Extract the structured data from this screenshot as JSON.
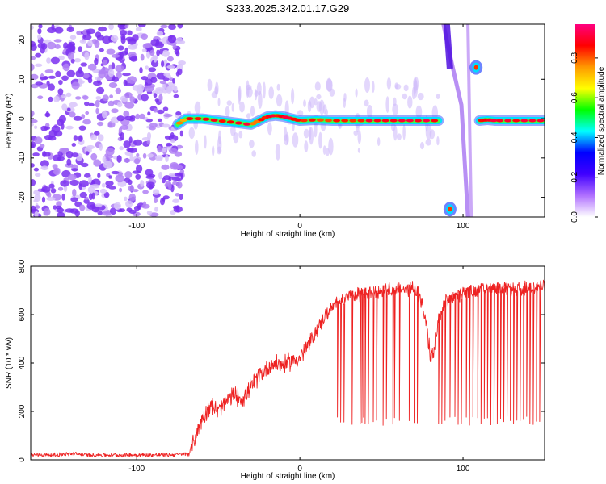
{
  "title": "S233.2025.342.01.17.G29",
  "chart_data": [
    {
      "type": "heatmap",
      "xlabel": "Height of straight line (km)",
      "ylabel": "Frequency (Hz)",
      "xlim": [
        -165,
        150
      ],
      "ylim": [
        -25,
        24
      ],
      "xticks": [
        "-100",
        "0",
        "100"
      ],
      "yticks": [
        "-20",
        "-10",
        "0",
        "10",
        "20"
      ],
      "colorbar": {
        "label": "Normalized spectral amplitude",
        "ticks": [
          "0.0",
          "0.2",
          "0.4",
          "0.6",
          "0.8"
        ],
        "range": [
          0,
          0.97
        ],
        "colors": [
          "#ffffff",
          "#b070ff",
          "#4000ff",
          "#0000ff",
          "#00ffff",
          "#00ff00",
          "#ffff00",
          "#ff9900",
          "#ff0000",
          "#ff0080"
        ]
      },
      "noise_region_x": [
        -165,
        -72
      ],
      "main_trace": {
        "x": [
          -75,
          -70,
          -60,
          -50,
          -40,
          -30,
          -25,
          -20,
          -15,
          -10,
          -5,
          0,
          10,
          20,
          40,
          60,
          75,
          85
        ],
        "freq": [
          -1.5,
          0,
          0,
          -0.5,
          -1,
          -1.5,
          -0.5,
          0.5,
          0.8,
          0.5,
          0,
          -0.5,
          -0.3,
          -0.5,
          -0.5,
          -0.5,
          -0.5,
          -0.5
        ],
        "amp": [
          0.8,
          0.9,
          0.95,
          0.9,
          0.95,
          0.85,
          0.9,
          0.95,
          0.9,
          0.95,
          0.9,
          0.9,
          0.85,
          0.9,
          0.95,
          0.95,
          0.95,
          0.9
        ]
      },
      "side_trace": {
        "x": [
          110,
          115,
          120,
          130,
          140,
          150
        ],
        "freq": [
          -0.5,
          -0.3,
          -0.5,
          -0.5,
          -0.5,
          -0.5
        ],
        "amp": [
          0.9,
          0.95,
          0.95,
          0.95,
          0.95,
          0.9
        ]
      },
      "blobs": [
        {
          "x": 108,
          "freq": 13,
          "amp": 0.85
        },
        {
          "x": 92,
          "freq": -23,
          "amp": 0.85
        }
      ]
    },
    {
      "type": "line",
      "xlabel": "Height of straight line (km)",
      "ylabel": "SNR (10 * v/v)",
      "xlim": [
        -165,
        150
      ],
      "ylim": [
        0,
        800
      ],
      "xticks": [
        "-100",
        "0",
        "100"
      ],
      "yticks": [
        "0",
        "200",
        "400",
        "600",
        "800"
      ],
      "series": [
        {
          "color": "#ee2222",
          "x": [
            -165,
            -150,
            -140,
            -130,
            -120,
            -100,
            -80,
            -68,
            -65,
            -60,
            -55,
            -50,
            -45,
            -40,
            -35,
            -30,
            -25,
            -20,
            -15,
            -10,
            -5,
            0,
            5,
            10,
            15,
            20,
            25,
            30,
            40,
            50,
            60,
            65,
            70,
            72,
            75,
            78,
            80,
            82,
            85,
            90,
            100,
            110,
            120,
            130,
            140,
            150
          ],
          "y": [
            20,
            20,
            25,
            20,
            20,
            20,
            20,
            25,
            80,
            170,
            230,
            200,
            240,
            270,
            250,
            300,
            350,
            380,
            400,
            390,
            410,
            420,
            470,
            530,
            590,
            630,
            660,
            680,
            690,
            700,
            710,
            700,
            720,
            690,
            640,
            540,
            420,
            440,
            580,
            660,
            690,
            700,
            710,
            700,
            710,
            720
          ]
        }
      ],
      "dropouts": [
        23,
        25,
        27,
        32,
        37,
        38,
        39,
        40,
        42,
        45,
        47,
        51,
        53,
        57,
        58,
        61,
        67,
        70,
        72,
        85,
        87,
        89,
        92,
        95,
        97,
        99,
        102,
        104,
        106,
        109,
        111,
        113,
        115,
        117,
        119,
        121,
        123,
        125,
        127,
        129,
        131,
        133,
        135,
        137,
        139,
        141,
        143,
        145,
        147
      ],
      "dropout_y": 160
    }
  ]
}
